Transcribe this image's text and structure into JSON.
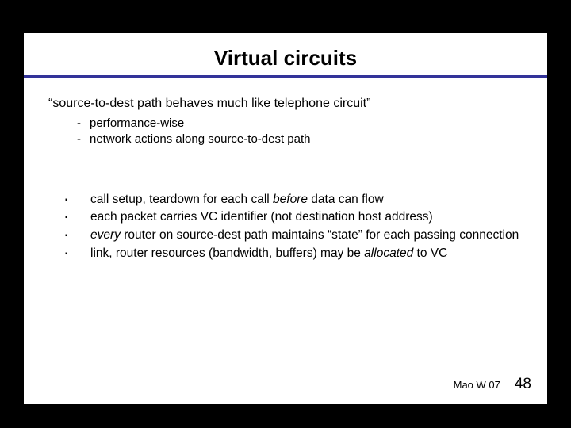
{
  "title": "Virtual circuits",
  "box": {
    "heading": "“source-to-dest path behaves much like telephone circuit”",
    "items": [
      "performance-wise",
      "network actions along source-to-dest path"
    ]
  },
  "bullets": {
    "b1_pre": "call setup, teardown for each call ",
    "b1_em": "before",
    "b1_post": " data can flow",
    "b2": "each packet carries VC identifier (not destination host address)",
    "b3_em": "every",
    "b3_post": " router on source-dest path maintains “state” for each passing connection",
    "b4_pre": "link, router resources (bandwidth, buffers) may be ",
    "b4_em": "allocated",
    "b4_post": " to VC"
  },
  "footer": {
    "credit": "Mao W 07",
    "page": "48"
  },
  "colors": {
    "accent": "#333399",
    "background": "#ffffff",
    "outer": "#000000"
  }
}
